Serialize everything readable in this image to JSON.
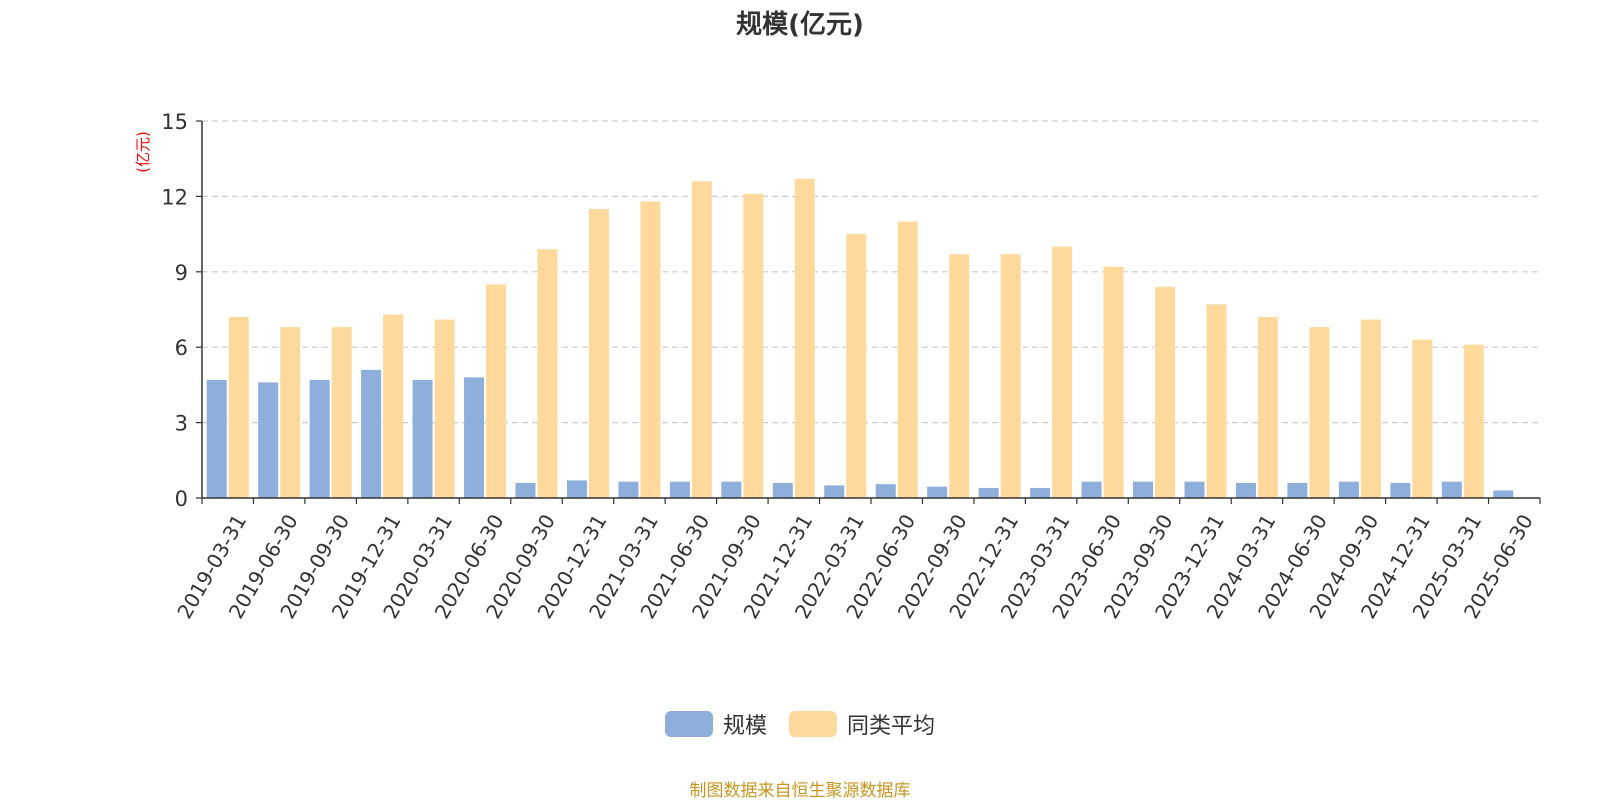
{
  "chart_data": {
    "type": "bar",
    "title": "规模(亿元)",
    "ylabel": "(亿元)",
    "ylim": [
      0,
      15
    ],
    "yticks": [
      0,
      3,
      6,
      9,
      12,
      15
    ],
    "grid": true,
    "legend_position": "bottom",
    "categories": [
      "2019-03-31",
      "2019-06-30",
      "2019-09-30",
      "2019-12-31",
      "2020-03-31",
      "2020-06-30",
      "2020-09-30",
      "2020-12-31",
      "2021-03-31",
      "2021-06-30",
      "2021-09-30",
      "2021-12-31",
      "2022-03-31",
      "2022-06-30",
      "2022-09-30",
      "2022-12-31",
      "2023-03-31",
      "2023-06-30",
      "2023-09-30",
      "2023-12-31",
      "2024-03-31",
      "2024-06-30",
      "2024-09-30",
      "2024-12-31",
      "2025-03-31",
      "2025-06-30"
    ],
    "series": [
      {
        "name": "规模",
        "color": "#8eaedb",
        "values": [
          4.7,
          4.6,
          4.7,
          5.1,
          4.7,
          4.8,
          0.6,
          0.7,
          0.65,
          0.65,
          0.65,
          0.6,
          0.5,
          0.55,
          0.45,
          0.4,
          0.4,
          0.65,
          0.65,
          0.65,
          0.6,
          0.6,
          0.65,
          0.6,
          0.65,
          0.3
        ]
      },
      {
        "name": "同类平均",
        "color": "#ffd99b",
        "values": [
          7.2,
          6.8,
          6.8,
          7.3,
          7.1,
          8.5,
          9.9,
          11.5,
          11.8,
          12.6,
          12.1,
          12.7,
          10.5,
          11.0,
          9.7,
          9.7,
          10.0,
          9.2,
          8.4,
          7.7,
          7.2,
          6.8,
          7.1,
          6.3,
          6.1,
          null
        ]
      }
    ]
  },
  "source_note": "制图数据来自恒生聚源数据库",
  "colors": {
    "axis_label": "#ff0000",
    "source": "#c8961e",
    "grid": "#cccccc",
    "text": "#333333"
  }
}
